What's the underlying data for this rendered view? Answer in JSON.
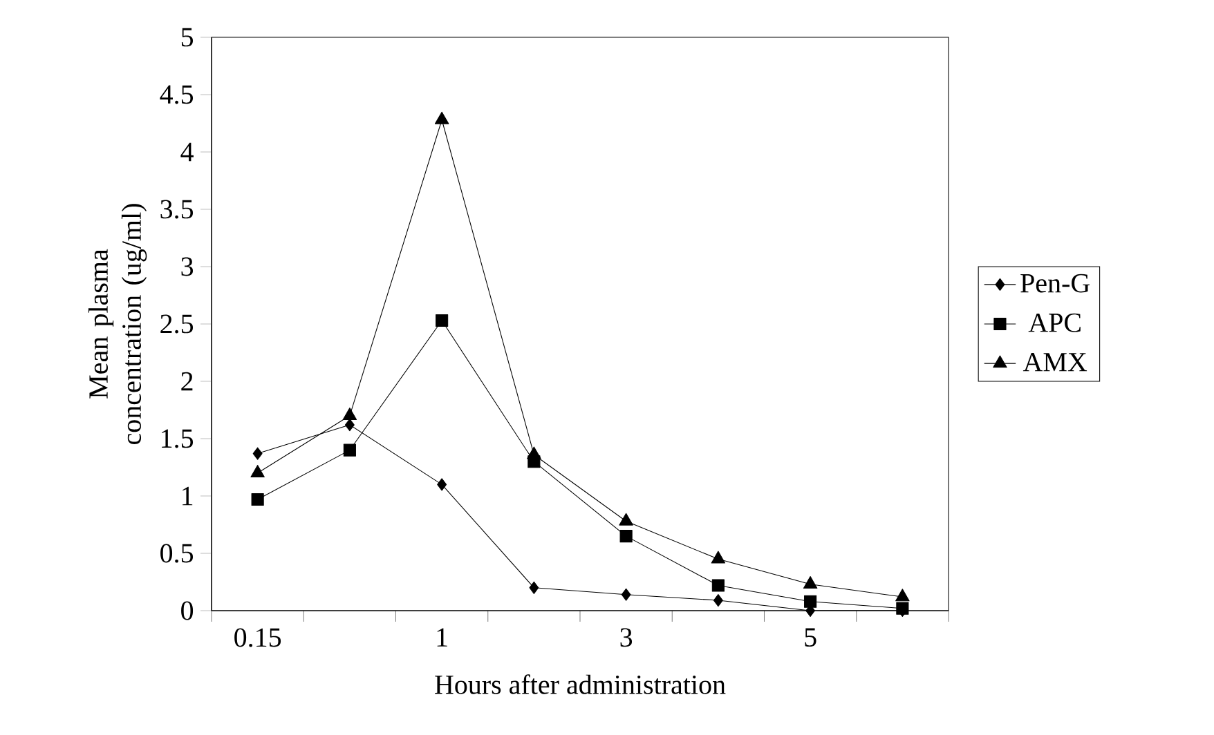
{
  "chart_data": {
    "type": "line",
    "xlabel": "Hours after administration",
    "ylabel": "Mean plasma concentration (ug/ml)",
    "categories": [
      "0.15",
      null,
      "1",
      null,
      "3",
      null,
      "5",
      null
    ],
    "ylim": [
      0,
      5
    ],
    "yticks": [
      0,
      0.5,
      1,
      1.5,
      2,
      2.5,
      3,
      3.5,
      4,
      4.5,
      5
    ],
    "grid": false,
    "legend": "right",
    "line_style": "solid",
    "series": [
      {
        "name": "Pen-G",
        "color": "#000000",
        "marker": "diamond",
        "values": [
          1.37,
          1.62,
          1.1,
          0.2,
          0.14,
          0.09,
          0.0,
          0.0
        ]
      },
      {
        "name": "APC",
        "color": "#000000",
        "marker": "square",
        "values": [
          0.97,
          1.4,
          2.53,
          1.3,
          0.65,
          0.22,
          0.08,
          0.02
        ]
      },
      {
        "name": "AMX",
        "color": "#000000",
        "marker": "triangle",
        "values": [
          1.2,
          1.7,
          4.28,
          1.36,
          0.78,
          0.45,
          0.23,
          0.12
        ]
      }
    ]
  }
}
